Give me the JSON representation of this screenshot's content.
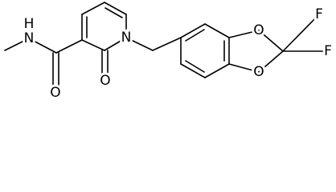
{
  "atoms": [
    {
      "label": "H"
    },
    {
      "label": "N"
    },
    {
      "label": "O"
    },
    {
      "label": "O"
    },
    {
      "label": "N"
    },
    {
      "label": "O"
    },
    {
      "label": "O"
    },
    {
      "label": "F"
    },
    {
      "label": "F"
    }
  ]
}
